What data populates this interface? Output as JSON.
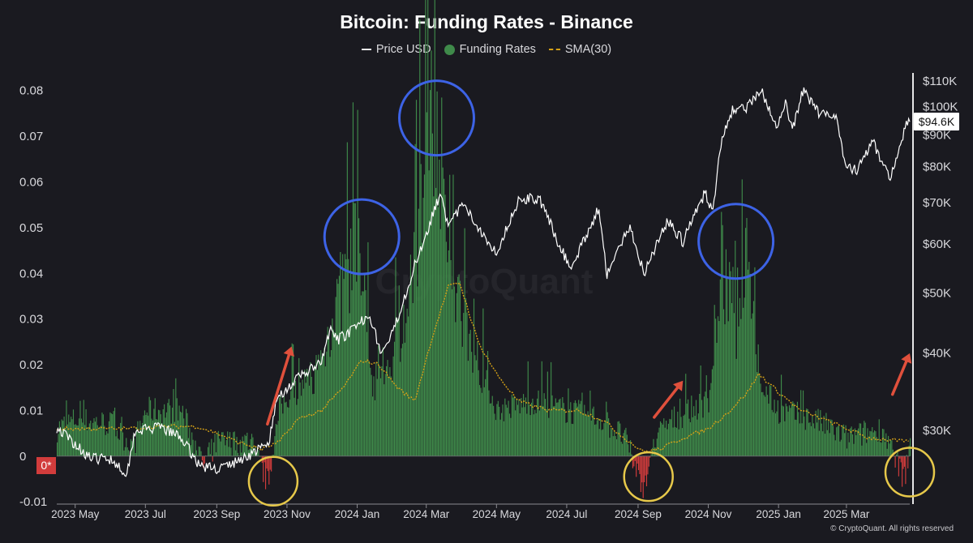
{
  "title": "Bitcoin: Funding Rates - Binance",
  "legend": {
    "price": "Price USD",
    "funding": "Funding Rates",
    "sma": "SMA(30)"
  },
  "watermark": "CryptoQuant",
  "copyright": "© CryptoQuant. All rights reserved",
  "price_badge": "$94.6K",
  "zero_badge": "0*",
  "colors": {
    "background": "#1a1a20",
    "price": "#ffffff",
    "funding_positive": "#3f8a4a",
    "funding_negative": "#d23c3c",
    "sma": "#d4a017",
    "blue_circle": "#3d63e6",
    "yellow_circle": "#e6c84a",
    "arrow": "#e0503c"
  },
  "chart_data": {
    "type": "bar",
    "x_range": [
      "2023-04-15",
      "2025-04-25"
    ],
    "x_ticks": [
      "2023 May",
      "2023 Jul",
      "2023 Sep",
      "2023 Nov",
      "2024 Jan",
      "2024 Mar",
      "2024 May",
      "2024 Jul",
      "2024 Sep",
      "2024 Nov",
      "2025 Jan",
      "2025 Mar"
    ],
    "y_left": {
      "range": [
        -0.0105,
        0.0835
      ],
      "ticks": [
        "0.08",
        "0.07",
        "0.06",
        "0.05",
        "0.04",
        "0.03",
        "0.02",
        "0.01",
        "0",
        "-0.01"
      ],
      "tick_values": [
        0.08,
        0.07,
        0.06,
        0.05,
        0.04,
        0.03,
        0.02,
        0.01,
        0,
        -0.01
      ]
    },
    "y_right": {
      "scale": "log",
      "ticks": [
        "$110K",
        "$100K",
        "$90K",
        "$80K",
        "$70K",
        "$60K",
        "$50K",
        "$40K",
        "$30K"
      ],
      "tick_values": [
        110000,
        100000,
        90000,
        80000,
        70000,
        60000,
        50000,
        40000,
        30000
      ]
    },
    "series": [
      {
        "name": "Price USD",
        "kind": "line",
        "points": [
          [
            "2023-04-15",
            30300
          ],
          [
            "2023-05-01",
            28500
          ],
          [
            "2023-05-15",
            27000
          ],
          [
            "2023-06-01",
            27000
          ],
          [
            "2023-06-15",
            25500
          ],
          [
            "2023-06-22",
            30000
          ],
          [
            "2023-07-15",
            30300
          ],
          [
            "2023-08-01",
            29200
          ],
          [
            "2023-08-17",
            26300
          ],
          [
            "2023-09-01",
            26000
          ],
          [
            "2023-09-15",
            26500
          ],
          [
            "2023-10-01",
            27500
          ],
          [
            "2023-10-16",
            28500
          ],
          [
            "2023-10-24",
            34000
          ],
          [
            "2023-11-15",
            37000
          ],
          [
            "2023-12-01",
            38500
          ],
          [
            "2023-12-08",
            43500
          ],
          [
            "2023-12-15",
            42000
          ],
          [
            "2024-01-01",
            44000
          ],
          [
            "2024-01-11",
            46500
          ],
          [
            "2024-01-22",
            39800
          ],
          [
            "2024-02-01",
            43000
          ],
          [
            "2024-02-15",
            51800
          ],
          [
            "2024-03-01",
            62500
          ],
          [
            "2024-03-14",
            73000
          ],
          [
            "2024-03-20",
            63500
          ],
          [
            "2024-04-01",
            69500
          ],
          [
            "2024-04-15",
            64000
          ],
          [
            "2024-05-01",
            58000
          ],
          [
            "2024-05-21",
            71000
          ],
          [
            "2024-06-07",
            71000
          ],
          [
            "2024-06-24",
            60000
          ],
          [
            "2024-07-05",
            54500
          ],
          [
            "2024-07-29",
            68500
          ],
          [
            "2024-08-05",
            53500
          ],
          [
            "2024-08-25",
            64000
          ],
          [
            "2024-09-06",
            53800
          ],
          [
            "2024-09-27",
            65500
          ],
          [
            "2024-10-10",
            60500
          ],
          [
            "2024-10-29",
            72500
          ],
          [
            "2024-11-05",
            68000
          ],
          [
            "2024-11-13",
            90000
          ],
          [
            "2024-11-22",
            98500
          ],
          [
            "2024-12-05",
            100000
          ],
          [
            "2024-12-17",
            106000
          ],
          [
            "2024-12-30",
            92000
          ],
          [
            "2025-01-07",
            102000
          ],
          [
            "2025-01-13",
            91000
          ],
          [
            "2025-01-22",
            106000
          ],
          [
            "2025-02-05",
            98000
          ],
          [
            "2025-02-20",
            97000
          ],
          [
            "2025-02-28",
            80000
          ],
          [
            "2025-03-10",
            79000
          ],
          [
            "2025-03-24",
            87500
          ],
          [
            "2025-04-08",
            76500
          ],
          [
            "2025-04-15",
            85000
          ],
          [
            "2025-04-22",
            93500
          ],
          [
            "2025-04-25",
            94600
          ]
        ]
      },
      {
        "name": "Funding Rates",
        "kind": "bar",
        "points": [
          [
            "2023-04-15",
            0.006
          ],
          [
            "2023-05-01",
            0.008
          ],
          [
            "2023-06-01",
            0.007
          ],
          [
            "2023-06-20",
            0.002
          ],
          [
            "2023-07-01",
            0.01
          ],
          [
            "2023-08-01",
            0.01
          ],
          [
            "2023-08-20",
            -0.002
          ],
          [
            "2023-09-01",
            0.003
          ],
          [
            "2023-10-01",
            0.003
          ],
          [
            "2023-10-15",
            -0.006
          ],
          [
            "2023-10-25",
            0.01
          ],
          [
            "2023-11-01",
            0.013
          ],
          [
            "2023-11-15",
            0.015
          ],
          [
            "2023-12-01",
            0.02
          ],
          [
            "2023-12-10",
            0.03
          ],
          [
            "2024-01-01",
            0.045
          ],
          [
            "2024-01-15",
            0.015
          ],
          [
            "2024-02-01",
            0.022
          ],
          [
            "2024-02-15",
            0.032
          ],
          [
            "2024-03-05",
            0.078
          ],
          [
            "2024-03-12",
            0.068
          ],
          [
            "2024-03-20",
            0.04
          ],
          [
            "2024-04-01",
            0.03
          ],
          [
            "2024-04-15",
            0.02
          ],
          [
            "2024-05-01",
            0.01
          ],
          [
            "2024-06-01",
            0.012
          ],
          [
            "2024-07-01",
            0.01
          ],
          [
            "2024-08-01",
            0.008
          ],
          [
            "2024-08-20",
            0.004
          ],
          [
            "2024-09-05",
            -0.007
          ],
          [
            "2024-09-15",
            0.004
          ],
          [
            "2024-10-01",
            0.008
          ],
          [
            "2024-10-15",
            0.01
          ],
          [
            "2024-11-01",
            0.012
          ],
          [
            "2024-11-12",
            0.042
          ],
          [
            "2024-11-25",
            0.025
          ],
          [
            "2024-12-05",
            0.047
          ],
          [
            "2024-12-15",
            0.016
          ],
          [
            "2025-01-01",
            0.01
          ],
          [
            "2025-02-01",
            0.008
          ],
          [
            "2025-03-01",
            0.004
          ],
          [
            "2025-04-01",
            0.006
          ],
          [
            "2025-04-20",
            -0.005
          ],
          [
            "2025-04-25",
            0.003
          ]
        ]
      },
      {
        "name": "SMA(30)",
        "kind": "line",
        "points": [
          [
            "2023-04-15",
            0.006
          ],
          [
            "2023-05-15",
            0.006
          ],
          [
            "2023-06-15",
            0.006
          ],
          [
            "2023-07-15",
            0.0065
          ],
          [
            "2023-08-15",
            0.0065
          ],
          [
            "2023-09-01",
            0.005
          ],
          [
            "2023-09-20",
            0.003
          ],
          [
            "2023-10-10",
            0.0015
          ],
          [
            "2023-10-25",
            0.003
          ],
          [
            "2023-11-10",
            0.008
          ],
          [
            "2023-12-01",
            0.01
          ],
          [
            "2023-12-20",
            0.015
          ],
          [
            "2024-01-05",
            0.021
          ],
          [
            "2024-01-20",
            0.02
          ],
          [
            "2024-02-05",
            0.015
          ],
          [
            "2024-02-20",
            0.012
          ],
          [
            "2024-03-05",
            0.025
          ],
          [
            "2024-03-20",
            0.037
          ],
          [
            "2024-03-30",
            0.038
          ],
          [
            "2024-04-15",
            0.025
          ],
          [
            "2024-05-01",
            0.018
          ],
          [
            "2024-05-20",
            0.012
          ],
          [
            "2024-06-15",
            0.01
          ],
          [
            "2024-07-10",
            0.01
          ],
          [
            "2024-08-01",
            0.008
          ],
          [
            "2024-08-20",
            0.004
          ],
          [
            "2024-09-05",
            0.001
          ],
          [
            "2024-09-20",
            0.0015
          ],
          [
            "2024-10-10",
            0.004
          ],
          [
            "2024-11-01",
            0.006
          ],
          [
            "2024-11-20",
            0.01
          ],
          [
            "2024-12-05",
            0.014
          ],
          [
            "2024-12-15",
            0.018
          ],
          [
            "2025-01-01",
            0.014
          ],
          [
            "2025-01-20",
            0.01
          ],
          [
            "2025-02-10",
            0.008
          ],
          [
            "2025-03-01",
            0.006
          ],
          [
            "2025-03-20",
            0.004
          ],
          [
            "2025-04-10",
            0.0035
          ],
          [
            "2025-04-25",
            0.003
          ]
        ]
      }
    ],
    "annotations": {
      "blue_circles": [
        {
          "date": "2024-01-05",
          "value": 0.048
        },
        {
          "date": "2024-03-10",
          "value": 0.074
        },
        {
          "date": "2024-11-25",
          "value": 0.047
        }
      ],
      "yellow_circles": [
        {
          "date": "2023-10-20",
          "value": -0.0055
        },
        {
          "date": "2024-09-10",
          "value": -0.0045
        },
        {
          "date": "2025-04-25",
          "value": -0.0035
        }
      ],
      "arrows": [
        {
          "from": [
            "2023-10-15",
            0.007
          ],
          "to": [
            "2023-11-05",
            0.024
          ]
        },
        {
          "from": [
            "2024-09-15",
            0.0085
          ],
          "to": [
            "2024-10-10",
            0.0165
          ]
        },
        {
          "from": [
            "2025-04-10",
            0.0135
          ],
          "to": [
            "2025-04-25",
            0.0225
          ]
        }
      ]
    },
    "grid": false,
    "legend_position": "top-center"
  }
}
